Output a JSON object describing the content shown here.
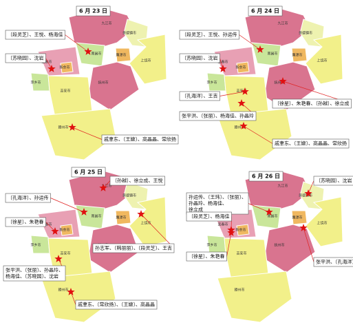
{
  "cities": [
    "九江市",
    "景德镇市",
    "南昌市",
    "上饶市",
    "宜春市",
    "新余市",
    "鹰潭市",
    "萍乡市",
    "抚州市",
    "吉安市",
    "赣州市"
  ],
  "panels": [
    {
      "date": "6 月 23 日",
      "notes": [
        {
          "lines": [
            "〔段灵芝〕、王悦、杨海佳"
          ]
        },
        {
          "lines": [
            "〔苏晓园〕、沈岩"
          ]
        },
        {
          "lines": [
            "戚聿东、〔王婕〕、高晶晶、常欣扬"
          ]
        }
      ]
    },
    {
      "date": "6 月 24 日",
      "notes": [
        {
          "lines": [
            "〔段灵芝〕、王悦、孙运传"
          ]
        },
        {
          "lines": [
            "〔苏晓园〕、沈岩"
          ]
        },
        {
          "lines": [
            "〔孔海洋〕、王吉"
          ]
        },
        {
          "lines": [
            "〔徐星〕、朱艳春、〔孙越〕、徐立成"
          ]
        },
        {
          "lines": [
            "张平洪、〔张丽〕、杨海佳、孙晶玲"
          ]
        },
        {
          "lines": [
            "戚聿东、〔王婕〕、高晶晶、常欣扬"
          ]
        }
      ]
    },
    {
      "date": "6 月 25 日",
      "notes": [
        {
          "lines": [
            "〔孙越〕、徐立成、王悦"
          ]
        },
        {
          "lines": [
            "〔孔海洋〕、孙运传"
          ]
        },
        {
          "lines": [
            "〔徐星〕、朱艳春"
          ]
        },
        {
          "lines": [
            "孙志军、〔韩丽丽〕、〔段灵芝〕、王吉"
          ]
        },
        {
          "lines": [
            "张平洪、〔张丽〕、孙晶玲、",
            "杨海佳、〔苏晓园〕、沈岩"
          ]
        },
        {
          "lines": [
            "戚聿东、〔常欣扬〕、〔王婕〕、高晶晶"
          ]
        }
      ]
    },
    {
      "date": "6 月 26 日",
      "notes": [
        {
          "lines": [
            "孙运传、〔王玮〕、〔张丽〕、",
            "孙晶玲、杨海佳、",
            "徐立成"
          ]
        },
        {
          "lines": [
            "〔段灵芝〕、杨海佳"
          ]
        },
        {
          "lines": [
            "〔苏晓园〕、沈岩"
          ]
        },
        {
          "lines": [
            "〔徐星〕、朱艳春"
          ]
        },
        {
          "lines": [
            "张平洪、〔孔海洋〕"
          ]
        }
      ]
    }
  ]
}
